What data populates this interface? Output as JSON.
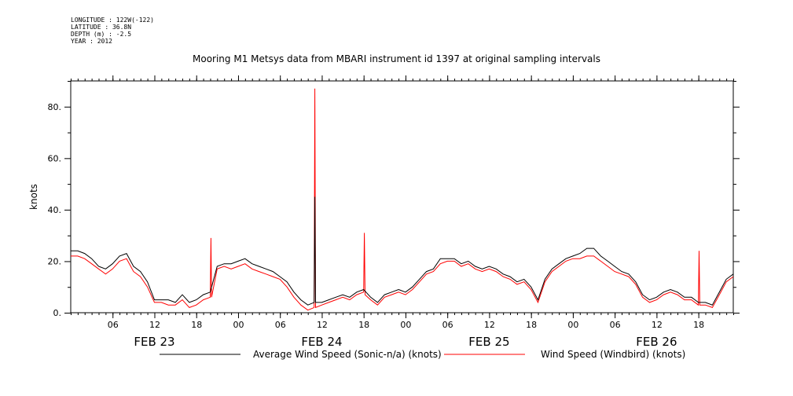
{
  "header": {
    "longitude": "LONGITUDE : 122W(-122)",
    "latitude": "LATITUDE : 36.8N",
    "depth": "DEPTH (m) : -2.5",
    "year": "YEAR : 2012"
  },
  "chart_data": {
    "type": "line",
    "title": "Mooring M1 Metsys data from MBARI instrument id 1397 at original sampling intervals",
    "ylabel": "knots",
    "xlabel": "",
    "ylim": [
      0,
      90
    ],
    "xlim_hours": [
      0,
      95
    ],
    "y_ticks": [
      0,
      20,
      40,
      60,
      80
    ],
    "y_tick_labels": [
      "0.",
      "20.",
      "40.",
      "60.",
      "80."
    ],
    "x_hour_ticks": [
      {
        "h": 6,
        "label": "06"
      },
      {
        "h": 12,
        "label": "12"
      },
      {
        "h": 18,
        "label": "18"
      },
      {
        "h": 24,
        "label": "00"
      },
      {
        "h": 30,
        "label": "06"
      },
      {
        "h": 36,
        "label": "12"
      },
      {
        "h": 42,
        "label": "18"
      },
      {
        "h": 48,
        "label": "00"
      },
      {
        "h": 54,
        "label": "06"
      },
      {
        "h": 60,
        "label": "12"
      },
      {
        "h": 66,
        "label": "18"
      },
      {
        "h": 72,
        "label": "00"
      },
      {
        "h": 78,
        "label": "06"
      },
      {
        "h": 84,
        "label": "12"
      },
      {
        "h": 90,
        "label": "18"
      }
    ],
    "day_labels": [
      {
        "h": 12,
        "label": "FEB 23"
      },
      {
        "h": 36,
        "label": "FEB 24"
      },
      {
        "h": 60,
        "label": "FEB 25"
      },
      {
        "h": 84,
        "label": "FEB 26"
      }
    ],
    "grid": false,
    "legend_position": "bottom",
    "series": [
      {
        "name": "Average Wind Speed (Sonic-n/a) (knots)",
        "color": "#000000",
        "x": [
          0,
          1,
          2,
          3,
          4,
          5,
          6,
          7,
          8,
          9,
          10,
          11,
          12,
          13,
          14,
          15,
          16,
          17,
          18,
          19,
          20,
          21,
          22,
          23,
          24,
          25,
          26,
          27,
          28,
          29,
          30,
          31,
          32,
          33,
          34,
          34.9,
          35,
          35.1,
          36,
          37,
          38,
          39,
          40,
          41,
          42,
          43,
          44,
          45,
          46,
          47,
          48,
          49,
          50,
          51,
          52,
          53,
          54,
          55,
          56,
          57,
          58,
          59,
          60,
          61,
          62,
          63,
          64,
          65,
          66,
          67,
          68,
          69,
          70,
          71,
          72,
          73,
          74,
          75,
          76,
          77,
          78,
          79,
          80,
          81,
          82,
          83,
          84,
          85,
          86,
          87,
          88,
          89,
          90,
          91,
          92,
          93,
          94,
          95
        ],
        "y": [
          24,
          24,
          23,
          21,
          18,
          17,
          19,
          22,
          23,
          18,
          16,
          12,
          5,
          5,
          5,
          4,
          7,
          4,
          5,
          7,
          8,
          18,
          19,
          19,
          20,
          21,
          19,
          18,
          17,
          16,
          14,
          12,
          8,
          5,
          3,
          4,
          45,
          4,
          4,
          5,
          6,
          7,
          6,
          8,
          9,
          6,
          4,
          7,
          8,
          9,
          8,
          10,
          13,
          16,
          17,
          21,
          21,
          21,
          19,
          20,
          18,
          17,
          18,
          17,
          15,
          14,
          12,
          13,
          10,
          5,
          13,
          17,
          19,
          21,
          22,
          23,
          25,
          25,
          22,
          20,
          18,
          16,
          15,
          12,
          7,
          5,
          6,
          8,
          9,
          8,
          6,
          6,
          4,
          4,
          3,
          8,
          13,
          15
        ]
      },
      {
        "name": "Wind Speed (Windbird) (knots)",
        "color": "#ff0000",
        "x": [
          0,
          1,
          2,
          3,
          4,
          5,
          6,
          7,
          8,
          9,
          10,
          11,
          12,
          13,
          14,
          15,
          16,
          17,
          18,
          19,
          20,
          20.1,
          20.2,
          21,
          22,
          23,
          24,
          25,
          26,
          27,
          28,
          29,
          30,
          31,
          32,
          33,
          34,
          34.9,
          35,
          35.1,
          36,
          37,
          38,
          39,
          40,
          41,
          42,
          42.1,
          42.2,
          43,
          44,
          45,
          46,
          47,
          48,
          49,
          50,
          51,
          52,
          53,
          54,
          55,
          56,
          57,
          58,
          59,
          60,
          61,
          62,
          63,
          64,
          65,
          66,
          67,
          68,
          69,
          70,
          71,
          72,
          73,
          74,
          75,
          76,
          77,
          78,
          79,
          80,
          81,
          82,
          83,
          84,
          85,
          86,
          87,
          88,
          89,
          90,
          90.1,
          90.2,
          91,
          92,
          93,
          94,
          95
        ],
        "y": [
          22,
          22,
          21,
          19,
          17,
          15,
          17,
          20,
          21,
          16,
          14,
          10,
          4,
          4,
          3,
          3,
          5,
          2,
          3,
          5,
          6,
          29,
          6,
          17,
          18,
          17,
          18,
          19,
          17,
          16,
          15,
          14,
          13,
          10,
          6,
          3,
          1,
          2,
          87,
          2,
          3,
          4,
          5,
          6,
          5,
          7,
          8,
          31,
          7,
          5,
          3,
          6,
          7,
          8,
          7,
          9,
          12,
          15,
          16,
          19,
          20,
          20,
          18,
          19,
          17,
          16,
          17,
          16,
          14,
          13,
          11,
          12,
          9,
          4,
          12,
          16,
          18,
          20,
          21,
          21,
          22,
          22,
          20,
          18,
          16,
          15,
          14,
          11,
          6,
          4,
          5,
          7,
          8,
          7,
          5,
          5,
          3,
          24,
          3,
          3,
          2,
          7,
          12,
          14
        ]
      }
    ]
  },
  "legend": {
    "series1_label": "Average Wind Speed (Sonic-n/a) (knots)",
    "series2_label": "Wind Speed (Windbird) (knots)"
  }
}
